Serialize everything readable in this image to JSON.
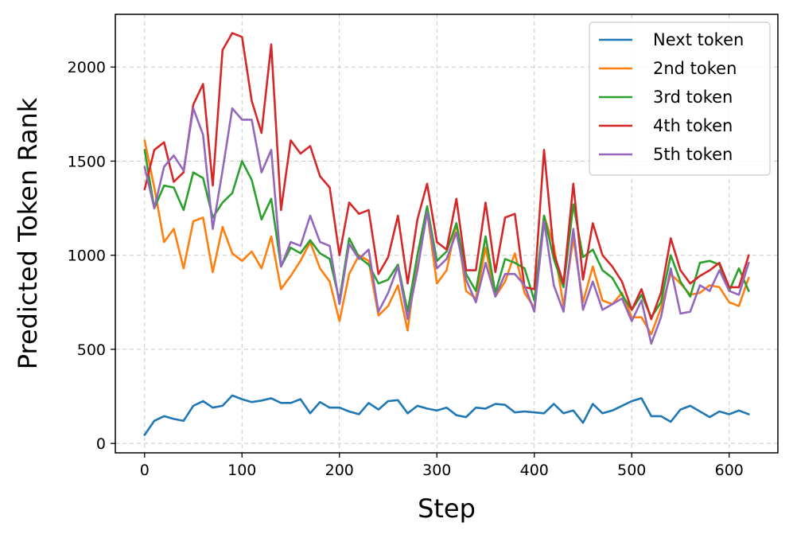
{
  "chart_data": {
    "type": "line",
    "title": "",
    "xlabel": "Step",
    "ylabel": "Predicted Token Rank",
    "xlim": [
      -30,
      650
    ],
    "ylim": [
      -50,
      2280
    ],
    "xticks": [
      0,
      100,
      200,
      300,
      400,
      500,
      600
    ],
    "yticks": [
      0,
      500,
      1000,
      1500,
      2000
    ],
    "grid": true,
    "legend_position": "top-right",
    "x": [
      0,
      10,
      20,
      30,
      40,
      50,
      60,
      70,
      80,
      90,
      100,
      110,
      120,
      130,
      140,
      150,
      160,
      170,
      180,
      190,
      200,
      210,
      220,
      230,
      240,
      250,
      260,
      270,
      280,
      290,
      300,
      310,
      320,
      330,
      340,
      350,
      360,
      370,
      380,
      390,
      400,
      410,
      420,
      430,
      440,
      450,
      460,
      470,
      480,
      490,
      500,
      510,
      520,
      530,
      540,
      550,
      560,
      570,
      580,
      590,
      600,
      610,
      620
    ],
    "series": [
      {
        "name": "Next token",
        "color": "#1f77b4",
        "values": [
          45,
          120,
          145,
          130,
          120,
          200,
          225,
          190,
          200,
          255,
          235,
          220,
          228,
          240,
          215,
          215,
          235,
          160,
          220,
          190,
          190,
          170,
          155,
          215,
          180,
          225,
          230,
          160,
          200,
          185,
          175,
          190,
          150,
          140,
          190,
          185,
          210,
          205,
          165,
          170,
          165,
          160,
          210,
          160,
          175,
          110,
          210,
          160,
          175,
          200,
          225,
          240,
          145,
          145,
          115,
          180,
          200,
          170,
          140,
          170,
          155,
          175,
          155
        ]
      },
      {
        "name": "2nd token",
        "color": "#ff7f0e",
        "values": [
          1610,
          1360,
          1070,
          1140,
          930,
          1180,
          1200,
          910,
          1150,
          1010,
          970,
          1020,
          930,
          1100,
          820,
          890,
          970,
          1070,
          930,
          860,
          650,
          900,
          1000,
          970,
          680,
          730,
          840,
          600,
          1000,
          1230,
          850,
          920,
          1170,
          810,
          770,
          1040,
          780,
          860,
          1010,
          800,
          720,
          1210,
          1050,
          730,
          1090,
          750,
          940,
          760,
          740,
          800,
          670,
          670,
          580,
          720,
          900,
          850,
          790,
          800,
          840,
          830,
          750,
          730,
          880
        ]
      },
      {
        "name": "3rd token",
        "color": "#2ca02c",
        "values": [
          1560,
          1250,
          1370,
          1360,
          1240,
          1440,
          1410,
          1200,
          1280,
          1330,
          1500,
          1400,
          1190,
          1300,
          940,
          1040,
          1010,
          1080,
          1010,
          980,
          760,
          1090,
          990,
          950,
          850,
          870,
          950,
          700,
          1000,
          1260,
          970,
          1020,
          1170,
          900,
          810,
          1100,
          800,
          980,
          960,
          930,
          760,
          1210,
          980,
          830,
          1270,
          990,
          1030,
          920,
          880,
          790,
          710,
          790,
          670,
          750,
          1000,
          860,
          780,
          960,
          970,
          950,
          810,
          930,
          810
        ]
      },
      {
        "name": "4th token",
        "color": "#d62728",
        "values": [
          1350,
          1560,
          1600,
          1390,
          1440,
          1800,
          1910,
          1370,
          2090,
          2180,
          2160,
          1820,
          1650,
          2120,
          1240,
          1610,
          1540,
          1580,
          1420,
          1360,
          1000,
          1280,
          1220,
          1240,
          900,
          990,
          1210,
          850,
          1190,
          1380,
          1070,
          1030,
          1300,
          920,
          920,
          1280,
          910,
          1200,
          1220,
          830,
          820,
          1560,
          1010,
          850,
          1380,
          870,
          1170,
          1000,
          940,
          860,
          710,
          820,
          660,
          800,
          1090,
          920,
          850,
          890,
          920,
          960,
          830,
          830,
          1000
        ]
      },
      {
        "name": "5th token",
        "color": "#9467bd",
        "values": [
          1470,
          1250,
          1470,
          1530,
          1450,
          1780,
          1640,
          1140,
          1450,
          1780,
          1720,
          1720,
          1440,
          1560,
          940,
          1070,
          1050,
          1210,
          1070,
          1050,
          740,
          1060,
          980,
          1030,
          700,
          800,
          940,
          660,
          920,
          1230,
          930,
          980,
          1120,
          870,
          750,
          960,
          780,
          900,
          900,
          840,
          700,
          1180,
          840,
          700,
          1140,
          710,
          860,
          710,
          740,
          770,
          650,
          760,
          530,
          670,
          930,
          690,
          700,
          840,
          810,
          920,
          810,
          790,
          960
        ]
      }
    ]
  }
}
